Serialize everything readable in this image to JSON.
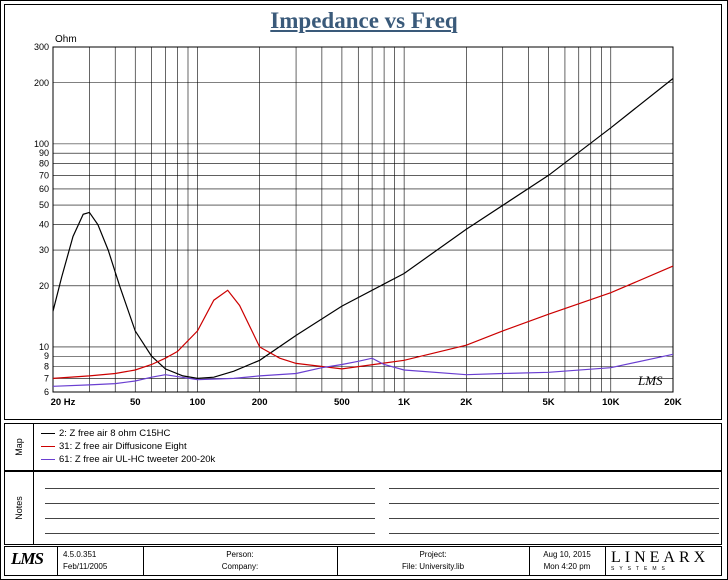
{
  "window": {
    "title": "Impedance vs Freq"
  },
  "chart_data": {
    "type": "line",
    "title": "Impedance vs Freq",
    "ylabel": "Ohm",
    "xlabel": "Hz",
    "x_scale": "log",
    "y_scale": "log",
    "xlim": [
      20,
      20000
    ],
    "ylim": [
      6,
      300
    ],
    "grid": true,
    "x_tick_labels": [
      "20 Hz",
      "50",
      "100",
      "200",
      "500",
      "1K",
      "2K",
      "5K",
      "10K",
      "20K"
    ],
    "y_tick_labels": [
      "300",
      "200",
      "100",
      "90",
      "80",
      "70",
      "60",
      "50",
      "40",
      "30",
      "20",
      "10",
      "9",
      "8",
      "7",
      "6"
    ],
    "watermark": "LMS",
    "series": [
      {
        "name": "2: Z free air 8 ohm    C15HC",
        "color": "#000000",
        "x": [
          20,
          22,
          25,
          28,
          30,
          33,
          37,
          42,
          50,
          60,
          70,
          85,
          100,
          120,
          150,
          200,
          300,
          500,
          1000,
          2000,
          5000,
          10000,
          20000
        ],
        "y": [
          15,
          22,
          35,
          45,
          46,
          40,
          30,
          20,
          12,
          9,
          7.8,
          7.2,
          7.0,
          7.1,
          7.6,
          8.6,
          11.4,
          15.9,
          23,
          38,
          70,
          120,
          210
        ]
      },
      {
        "name": "31: Z free air    Diffusicone Eight",
        "color": "#cc0000",
        "x": [
          20,
          30,
          40,
          50,
          60,
          70,
          80,
          100,
          120,
          140,
          160,
          200,
          250,
          300,
          500,
          1000,
          2000,
          3000,
          5000,
          10000,
          20000
        ],
        "y": [
          7,
          7.2,
          7.4,
          7.7,
          8.2,
          8.8,
          9.5,
          12,
          17,
          19,
          16,
          10,
          8.8,
          8.3,
          7.8,
          8.6,
          10.2,
          12,
          14.5,
          18.5,
          25
        ]
      },
      {
        "name": "61: Z free air    UL-HC tweeter    200-20k",
        "color": "#6a3fd1",
        "x": [
          20,
          30,
          40,
          50,
          60,
          70,
          100,
          150,
          200,
          300,
          400,
          500,
          600,
          700,
          800,
          1000,
          2000,
          3000,
          5000,
          10000,
          20000
        ],
        "y": [
          6.4,
          6.5,
          6.6,
          6.8,
          7.1,
          7.3,
          6.9,
          7.0,
          7.2,
          7.4,
          7.9,
          8.2,
          8.5,
          8.8,
          8.2,
          7.7,
          7.3,
          7.4,
          7.5,
          7.9,
          9.2
        ]
      }
    ]
  },
  "map_panel": {
    "label": "Map"
  },
  "notes_panel": {
    "label": "Notes"
  },
  "footer": {
    "logo": "LMS",
    "version": "4.5.0.351",
    "build_date": "Feb/11/2005",
    "person": "Person:",
    "company": "Company:",
    "project": "Project:",
    "file": "File: University.lib",
    "date": "Aug 10, 2015",
    "time": "Mon  4:20 pm",
    "brand": "LINEARX",
    "brand_sub": "SYSTEMS"
  }
}
